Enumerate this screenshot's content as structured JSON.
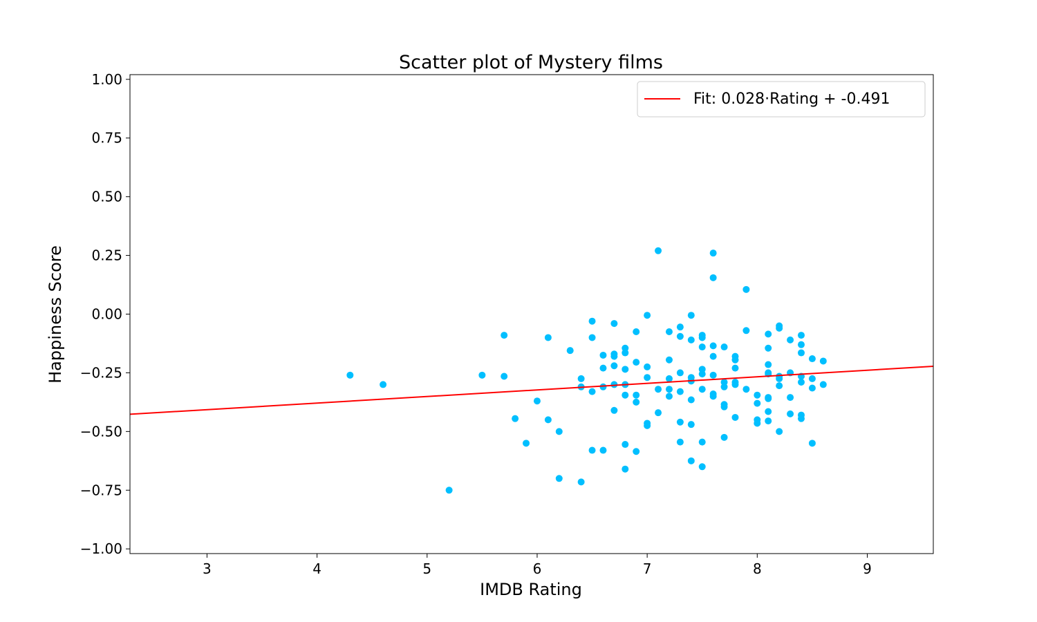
{
  "chart_data": {
    "type": "scatter",
    "title": "Scatter plot of Mystery films",
    "xlabel": "IMDB Rating",
    "ylabel": "Happiness Score",
    "xlim": [
      2.3,
      9.6
    ],
    "ylim": [
      -1.02,
      1.02
    ],
    "xticks": [
      3,
      4,
      5,
      6,
      7,
      8,
      9
    ],
    "xtick_labels": [
      "3",
      "4",
      "5",
      "6",
      "7",
      "8",
      "9"
    ],
    "yticks": [
      1.0,
      0.75,
      0.5,
      0.25,
      0.0,
      -0.25,
      -0.5,
      -0.75,
      -1.0
    ],
    "ytick_labels": [
      "1.00",
      "0.75",
      "0.50",
      "0.25",
      "0.00",
      "−0.25",
      "−0.50",
      "−0.75",
      "−1.00"
    ],
    "grid": false,
    "legend_position": "top-right",
    "colors": {
      "points": "#00bfff",
      "fit": "#ff0000"
    },
    "fit": {
      "label": "Fit: 0.028·Rating + -0.491",
      "slope": 0.028,
      "intercept": -0.491
    },
    "points": [
      [
        4.3,
        -0.26
      ],
      [
        4.6,
        -0.3
      ],
      [
        5.2,
        -0.75
      ],
      [
        5.5,
        -0.26
      ],
      [
        5.7,
        -0.09
      ],
      [
        5.7,
        -0.265
      ],
      [
        5.8,
        -0.445
      ],
      [
        5.9,
        -0.55
      ],
      [
        6.0,
        -0.37
      ],
      [
        6.1,
        -0.1
      ],
      [
        6.1,
        -0.45
      ],
      [
        6.2,
        -0.5
      ],
      [
        6.2,
        -0.7
      ],
      [
        6.3,
        -0.155
      ],
      [
        6.4,
        -0.275
      ],
      [
        6.4,
        -0.31
      ],
      [
        6.4,
        -0.715
      ],
      [
        6.5,
        -0.03
      ],
      [
        6.5,
        -0.1
      ],
      [
        6.5,
        -0.33
      ],
      [
        6.5,
        -0.58
      ],
      [
        6.6,
        -0.175
      ],
      [
        6.6,
        -0.23
      ],
      [
        6.6,
        -0.31
      ],
      [
        6.6,
        -0.58
      ],
      [
        6.7,
        -0.04
      ],
      [
        6.7,
        -0.17
      ],
      [
        6.7,
        -0.18
      ],
      [
        6.7,
        -0.22
      ],
      [
        6.7,
        -0.3
      ],
      [
        6.7,
        -0.41
      ],
      [
        6.8,
        -0.145
      ],
      [
        6.8,
        -0.165
      ],
      [
        6.8,
        -0.235
      ],
      [
        6.8,
        -0.3
      ],
      [
        6.8,
        -0.345
      ],
      [
        6.8,
        -0.555
      ],
      [
        6.8,
        -0.66
      ],
      [
        6.9,
        -0.075
      ],
      [
        6.9,
        -0.205
      ],
      [
        6.9,
        -0.345
      ],
      [
        6.9,
        -0.375
      ],
      [
        6.9,
        -0.585
      ],
      [
        7.0,
        -0.005
      ],
      [
        7.0,
        -0.225
      ],
      [
        7.0,
        -0.27
      ],
      [
        7.0,
        -0.465
      ],
      [
        7.0,
        -0.475
      ],
      [
        7.1,
        0.27
      ],
      [
        7.1,
        -0.32
      ],
      [
        7.1,
        -0.42
      ],
      [
        7.2,
        -0.075
      ],
      [
        7.2,
        -0.195
      ],
      [
        7.2,
        -0.275
      ],
      [
        7.2,
        -0.32
      ],
      [
        7.2,
        -0.35
      ],
      [
        7.3,
        -0.055
      ],
      [
        7.3,
        -0.095
      ],
      [
        7.3,
        -0.25
      ],
      [
        7.3,
        -0.33
      ],
      [
        7.3,
        -0.46
      ],
      [
        7.3,
        -0.545
      ],
      [
        7.4,
        -0.005
      ],
      [
        7.4,
        -0.11
      ],
      [
        7.4,
        -0.27
      ],
      [
        7.4,
        -0.285
      ],
      [
        7.4,
        -0.365
      ],
      [
        7.4,
        -0.47
      ],
      [
        7.4,
        -0.625
      ],
      [
        7.5,
        -0.09
      ],
      [
        7.5,
        -0.1
      ],
      [
        7.5,
        -0.14
      ],
      [
        7.5,
        -0.235
      ],
      [
        7.5,
        -0.255
      ],
      [
        7.5,
        -0.32
      ],
      [
        7.5,
        -0.545
      ],
      [
        7.5,
        -0.65
      ],
      [
        7.6,
        0.26
      ],
      [
        7.6,
        0.155
      ],
      [
        7.6,
        -0.135
      ],
      [
        7.6,
        -0.18
      ],
      [
        7.6,
        -0.26
      ],
      [
        7.6,
        -0.34
      ],
      [
        7.6,
        -0.35
      ],
      [
        7.7,
        -0.14
      ],
      [
        7.7,
        -0.29
      ],
      [
        7.7,
        -0.31
      ],
      [
        7.7,
        -0.385
      ],
      [
        7.7,
        -0.395
      ],
      [
        7.7,
        -0.525
      ],
      [
        7.8,
        -0.18
      ],
      [
        7.8,
        -0.195
      ],
      [
        7.8,
        -0.23
      ],
      [
        7.8,
        -0.29
      ],
      [
        7.8,
        -0.3
      ],
      [
        7.8,
        -0.44
      ],
      [
        7.9,
        0.105
      ],
      [
        7.9,
        -0.07
      ],
      [
        7.9,
        -0.32
      ],
      [
        8.0,
        -0.345
      ],
      [
        8.0,
        -0.38
      ],
      [
        8.0,
        -0.45
      ],
      [
        8.0,
        -0.465
      ],
      [
        8.1,
        -0.085
      ],
      [
        8.1,
        -0.145
      ],
      [
        8.1,
        -0.215
      ],
      [
        8.1,
        -0.25
      ],
      [
        8.1,
        -0.255
      ],
      [
        8.1,
        -0.355
      ],
      [
        8.1,
        -0.36
      ],
      [
        8.1,
        -0.415
      ],
      [
        8.1,
        -0.455
      ],
      [
        8.2,
        -0.05
      ],
      [
        8.2,
        -0.06
      ],
      [
        8.2,
        -0.265
      ],
      [
        8.2,
        -0.275
      ],
      [
        8.2,
        -0.305
      ],
      [
        8.2,
        -0.5
      ],
      [
        8.3,
        -0.11
      ],
      [
        8.3,
        -0.25
      ],
      [
        8.3,
        -0.355
      ],
      [
        8.3,
        -0.425
      ],
      [
        8.4,
        -0.09
      ],
      [
        8.4,
        -0.13
      ],
      [
        8.4,
        -0.165
      ],
      [
        8.4,
        -0.265
      ],
      [
        8.4,
        -0.29
      ],
      [
        8.4,
        -0.43
      ],
      [
        8.4,
        -0.445
      ],
      [
        8.5,
        -0.19
      ],
      [
        8.5,
        -0.275
      ],
      [
        8.5,
        -0.315
      ],
      [
        8.5,
        -0.55
      ],
      [
        8.6,
        -0.2
      ],
      [
        8.6,
        -0.3
      ]
    ]
  }
}
